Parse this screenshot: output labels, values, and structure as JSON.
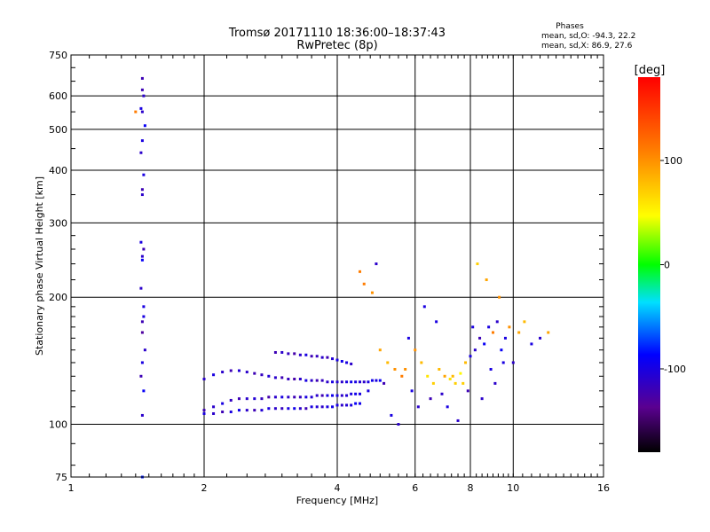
{
  "chart_data": {
    "type": "scatter",
    "title": "Tromsø 20171110 18:36:00–18:37:43",
    "subtitle": "RwPretec (8p)",
    "xlabel": "Frequency [MHz]",
    "ylabel": "Stationary phase Virtual Height [km]",
    "x_scale": "log2",
    "y_scale": "log",
    "xlim": [
      1,
      16
    ],
    "ylim": [
      75,
      750
    ],
    "x_ticks": [
      "1",
      "2",
      "4",
      "6",
      "8",
      "10",
      "16"
    ],
    "x_tick_values": [
      1,
      2,
      4,
      6,
      8,
      10,
      16
    ],
    "y_ticks": [
      "75",
      "100",
      "200",
      "300",
      "400",
      "500",
      "600",
      "750"
    ],
    "y_tick_values": [
      75,
      100,
      200,
      300,
      400,
      500,
      600,
      750
    ],
    "grid": true,
    "stats": {
      "title": "Phases",
      "line_o": "mean, sd,O: -94.3, 22.2",
      "line_x": "mean, sd,X:  86.9, 27.6"
    },
    "colorbar": {
      "label": "[deg]",
      "ticks": [
        "100",
        "0",
        "-100"
      ],
      "tick_values": [
        100,
        0,
        -100
      ],
      "range": [
        -180,
        180
      ]
    },
    "series": [
      {
        "x": [
          1.45,
          1.45,
          1.46,
          1.44,
          1.45,
          1.47,
          1.45,
          1.44,
          1.46,
          1.45,
          1.45,
          1.44,
          1.46,
          1.45,
          1.45,
          1.44,
          1.46,
          1.45,
          1.45,
          1.47,
          1.45,
          1.44,
          1.46,
          1.45,
          1.4,
          1.45,
          1.46
        ],
        "y": [
          660,
          620,
          600,
          560,
          550,
          510,
          470,
          440,
          390,
          360,
          350,
          270,
          260,
          250,
          245,
          210,
          190,
          175,
          165,
          150,
          140,
          130,
          120,
          105,
          550,
          75,
          180
        ],
        "phase": [
          -120,
          -120,
          -110,
          -100,
          -110,
          -90,
          -100,
          -110,
          -100,
          -120,
          -110,
          -100,
          -120,
          -110,
          -90,
          -110,
          -100,
          -120,
          -130,
          -110,
          -100,
          -120,
          -90,
          -110,
          110,
          -80,
          -100
        ]
      },
      {
        "x": [
          2.0,
          2.1,
          2.2,
          2.3,
          2.4,
          2.5,
          2.6,
          2.7,
          2.8,
          2.9,
          3.0,
          3.1,
          3.2,
          3.3,
          3.4,
          3.5,
          3.6,
          3.7,
          3.8,
          3.9,
          4.0,
          4.1,
          4.2,
          4.3,
          4.4,
          4.5,
          4.6,
          4.7,
          4.8,
          4.9,
          5.0
        ],
        "y": [
          128,
          131,
          133,
          134,
          134,
          133,
          132,
          131,
          130,
          129,
          129,
          128,
          128,
          128,
          127,
          127,
          127,
          127,
          126,
          126,
          126,
          126,
          126,
          126,
          126,
          126,
          126,
          126,
          127,
          127,
          127
        ],
        "phase": [
          -110,
          -100,
          -110,
          -120,
          -105,
          -110,
          -120,
          -115,
          -105,
          -110,
          -120,
          -115,
          -125,
          -110,
          -100,
          -110,
          -120,
          -115,
          -110,
          -100,
          -105,
          -110,
          -100,
          -95,
          -100,
          -105,
          -110,
          -100,
          -95,
          -100,
          -90
        ]
      },
      {
        "x": [
          2.0,
          2.1,
          2.2,
          2.3,
          2.4,
          2.5,
          2.6,
          2.7,
          2.8,
          2.9,
          3.0,
          3.1,
          3.2,
          3.3,
          3.4,
          3.5,
          3.6,
          3.7,
          3.8,
          3.9,
          4.0,
          4.1,
          4.2,
          4.3,
          4.4,
          4.5
        ],
        "y": [
          108,
          110,
          112,
          114,
          115,
          115,
          115,
          115,
          116,
          116,
          116,
          116,
          116,
          116,
          116,
          116,
          117,
          117,
          117,
          117,
          117,
          117,
          117,
          118,
          118,
          118
        ],
        "phase": [
          -120,
          -110,
          -100,
          -115,
          -120,
          -110,
          -105,
          -115,
          -125,
          -110,
          -100,
          -110,
          -120,
          -115,
          -100,
          -105,
          -110,
          -120,
          -100,
          -95,
          -100,
          -110,
          -105,
          -100,
          -95,
          -100
        ]
      },
      {
        "x": [
          2.0,
          2.1,
          2.2,
          2.3,
          2.4,
          2.5,
          2.6,
          2.7,
          2.8,
          2.9,
          3.0,
          3.1,
          3.2,
          3.3,
          3.4,
          3.5,
          3.6,
          3.7,
          3.8,
          3.9,
          4.0,
          4.1,
          4.2,
          4.3,
          4.4,
          4.5
        ],
        "y": [
          106,
          106,
          107,
          107,
          108,
          108,
          108,
          108,
          109,
          109,
          109,
          109,
          109,
          109,
          109,
          110,
          110,
          110,
          110,
          110,
          111,
          111,
          111,
          111,
          112,
          112
        ],
        "phase": [
          -100,
          -110,
          -120,
          -100,
          -95,
          -110,
          -120,
          -105,
          -100,
          -110,
          -115,
          -100,
          -95,
          -110,
          -120,
          -100,
          -105,
          -110,
          -100,
          -95,
          -100,
          -110,
          -105,
          -100,
          -90,
          -95
        ]
      },
      {
        "x": [
          2.9,
          3.0,
          3.1,
          3.2,
          3.3,
          3.4,
          3.5,
          3.6,
          3.7,
          3.8,
          3.9,
          4.0,
          4.1,
          4.2,
          4.3
        ],
        "y": [
          148,
          148,
          147,
          147,
          146,
          146,
          145,
          145,
          144,
          144,
          143,
          142,
          141,
          140,
          139
        ],
        "phase": [
          -120,
          -110,
          -115,
          -125,
          -110,
          -100,
          -120,
          -115,
          -110,
          -120,
          -105,
          -100,
          -95,
          -100,
          -110
        ]
      },
      {
        "x": [
          4.6,
          4.8,
          5.0,
          5.2,
          5.4,
          5.6,
          5.8,
          6.0,
          6.2,
          6.4,
          6.6,
          6.8,
          7.0,
          7.2,
          7.4,
          7.6,
          7.8,
          8.0,
          8.2,
          8.4,
          8.6,
          8.8,
          9.0,
          9.2,
          9.4,
          9.6,
          9.8,
          10.0,
          10.3,
          10.6,
          11.0,
          11.5,
          12.0
        ],
        "y": [
          215,
          205,
          150,
          140,
          135,
          130,
          160,
          150,
          140,
          130,
          125,
          135,
          130,
          128,
          125,
          132,
          140,
          145,
          150,
          160,
          155,
          170,
          165,
          175,
          150,
          160,
          170,
          140,
          165,
          175,
          155,
          160,
          165
        ],
        "phase": [
          110,
          100,
          90,
          80,
          100,
          110,
          -100,
          100,
          80,
          60,
          70,
          80,
          90,
          60,
          70,
          50,
          80,
          -100,
          -110,
          -120,
          -90,
          -100,
          110,
          -110,
          -90,
          -100,
          100,
          -110,
          90,
          80,
          -100,
          -110,
          90
        ]
      },
      {
        "x": [
          4.5,
          4.7,
          4.9,
          5.1,
          5.3,
          5.5,
          5.7,
          5.9,
          6.1,
          6.3,
          6.5,
          6.7,
          6.9,
          7.1,
          7.3,
          7.5,
          7.7,
          7.9,
          8.1,
          8.3,
          8.5,
          8.7,
          8.9,
          9.1,
          9.3,
          9.5
        ],
        "y": [
          230,
          120,
          240,
          125,
          105,
          100,
          135,
          120,
          110,
          190,
          115,
          175,
          118,
          110,
          130,
          102,
          125,
          120,
          170,
          240,
          115,
          220,
          135,
          125,
          200,
          140
        ],
        "phase": [
          110,
          -100,
          -110,
          -120,
          -100,
          -110,
          100,
          -100,
          -110,
          -100,
          -120,
          -100,
          -110,
          -100,
          80,
          -110,
          70,
          -120,
          -100,
          70,
          -110,
          90,
          -100,
          -110,
          100,
          -100
        ]
      }
    ]
  }
}
